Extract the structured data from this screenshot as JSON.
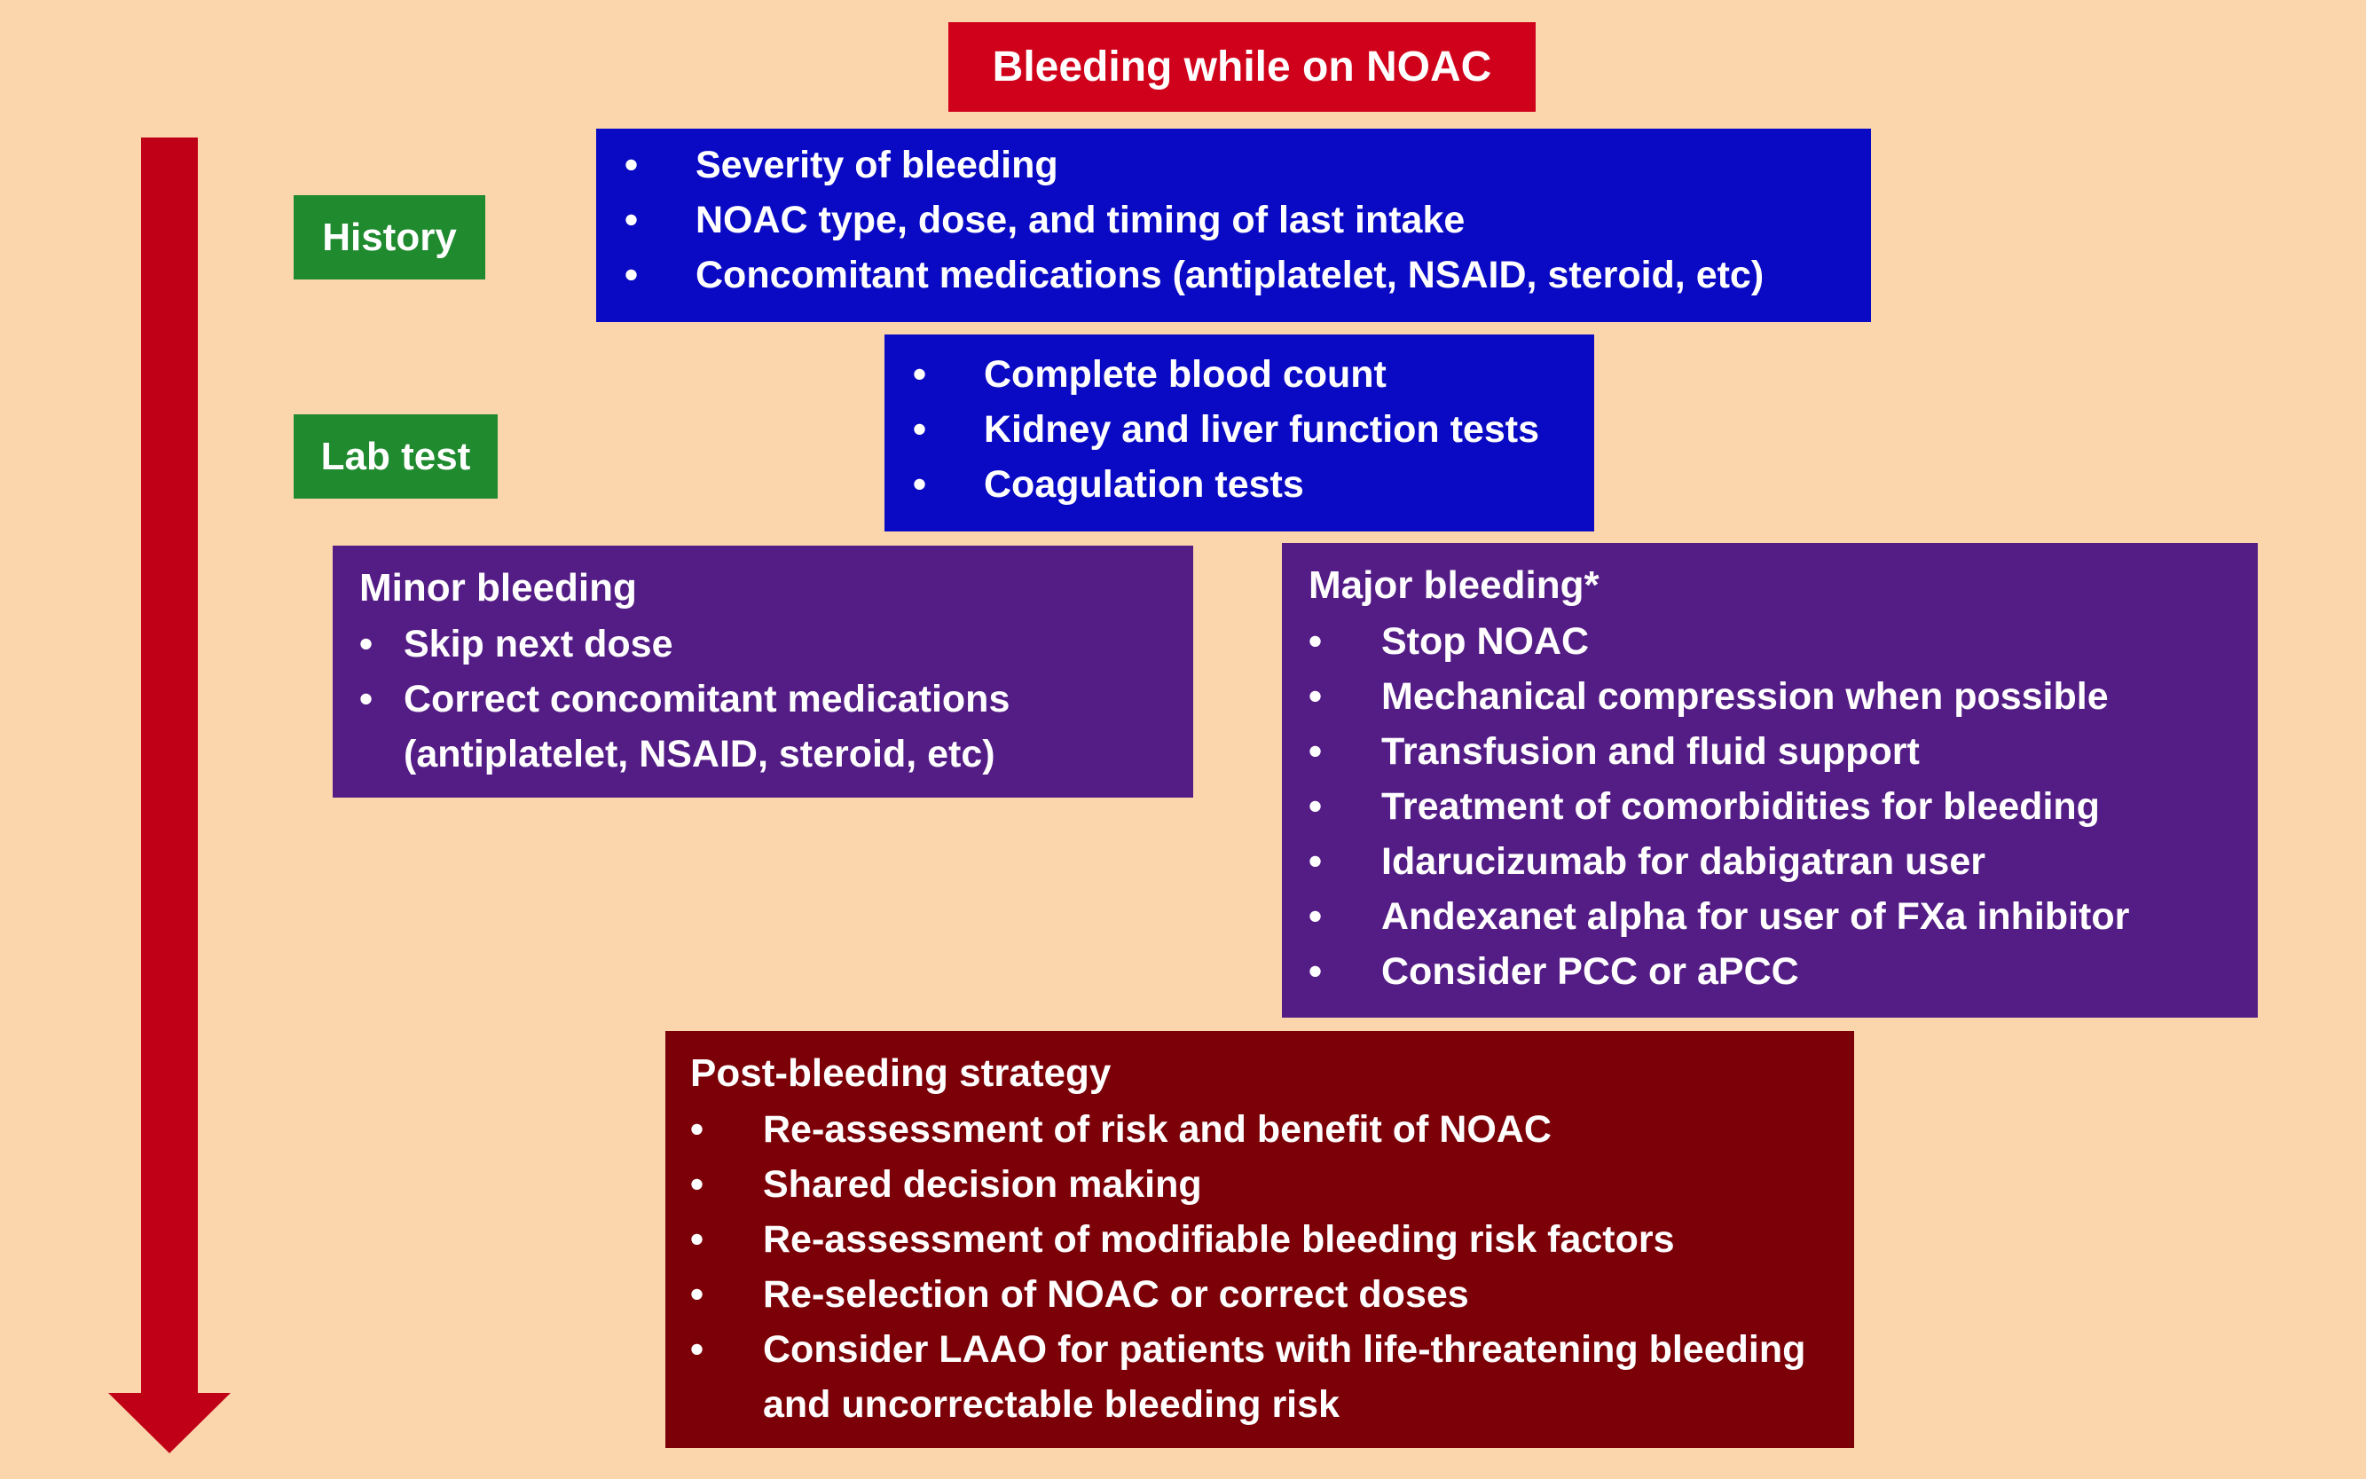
{
  "title": "Bleeding while on NOAC",
  "labels": {
    "history": "History",
    "lab_test": "Lab test"
  },
  "history_items": [
    "Severity of bleeding",
    "NOAC type, dose, and timing of last intake",
    "Concomitant medications (antiplatelet, NSAID, steroid, etc)"
  ],
  "lab_items": [
    "Complete blood count",
    "Kidney and liver function tests",
    "Coagulation tests"
  ],
  "minor": {
    "heading": "Minor bleeding",
    "items": [
      "Skip next dose",
      "Correct concomitant medications (antiplatelet, NSAID, steroid, etc)"
    ]
  },
  "major": {
    "heading": "Major bleeding*",
    "items": [
      "Stop NOAC",
      "Mechanical compression when possible",
      "Transfusion and fluid support",
      "Treatment of comorbidities for bleeding",
      "Idarucizumab for dabigatran user",
      "Andexanet alpha for user of FXa inhibitor",
      "Consider PCC or aPCC"
    ]
  },
  "post": {
    "heading": "Post-bleeding strategy",
    "items": [
      "Re-assessment of  risk and benefit of NOAC",
      "Shared decision making",
      "Re-assessment of modifiable bleeding risk factors",
      "Re-selection of NOAC or correct doses",
      "Consider LAAO for patients with life-threatening bleeding and uncorrectable bleeding risk"
    ]
  },
  "colors": {
    "background": "#FBD5AC",
    "title": "#D0021B",
    "label": "#1F8A2E",
    "blue": "#0A0AC4",
    "purple": "#541D86",
    "maroon": "#7C0007",
    "arrow": "#BF0016"
  }
}
